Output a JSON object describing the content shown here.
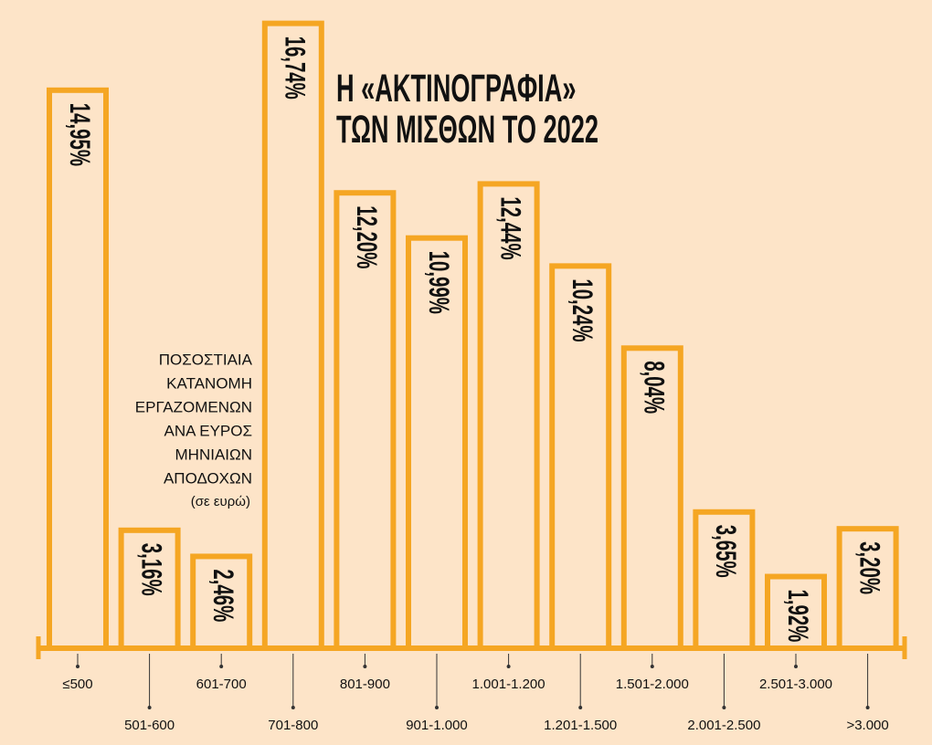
{
  "chart_data": {
    "type": "bar",
    "title": [
      "Η «ΑΚΤΙΝΟΓΡΑΦΙΑ»",
      "ΤΩΝ ΜΙΣΘΩΝ ΤΟ 2022"
    ],
    "subtitle": [
      "ΠΟΣΟΣΤΙΑΙΑ",
      "ΚΑΤΑΝΟΜΗ",
      "ΕΡΓΑΖΟΜΕΝΩΝ",
      "ΑΝΑ ΕΥΡΟΣ",
      "ΜΗΝΙΑΙΩΝ",
      "ΑΠΟΔΟΧΩΝ"
    ],
    "unit_note": "(σε ευρώ)",
    "categories": [
      "≤500",
      "501-600",
      "601-700",
      "701-800",
      "801-900",
      "901-1.000",
      "1.001-1.200",
      "1.201-1.500",
      "1.501-2.000",
      "2.001-2.500",
      "2.501-3.000",
      ">3.000"
    ],
    "values": [
      14.95,
      3.16,
      2.46,
      16.74,
      12.2,
      10.99,
      12.44,
      10.24,
      8.04,
      3.65,
      1.92,
      3.2
    ],
    "value_labels": [
      "14,95%",
      "3,16%",
      "2,46%",
      "16,74%",
      "12,20%",
      "10,99%",
      "12,44%",
      "10,24%",
      "8,04%",
      "3,65%",
      "1,92%",
      "3,20%"
    ],
    "color": "#f5a623",
    "ylim": [
      0,
      17
    ]
  }
}
